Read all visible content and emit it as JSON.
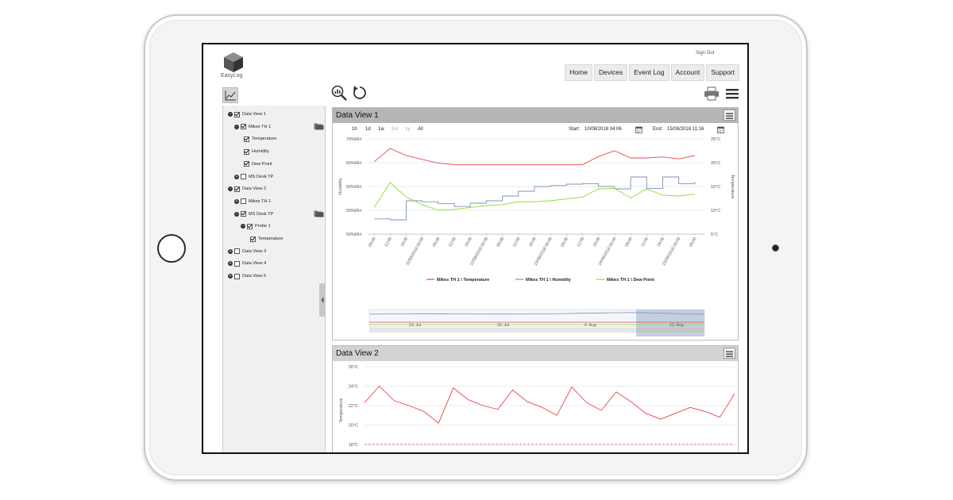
{
  "app": {
    "logo_text": "EasyLog",
    "sign_out": "Sign Out"
  },
  "nav": {
    "items": [
      {
        "label": "Home"
      },
      {
        "label": "Devices"
      },
      {
        "label": "Event Log"
      },
      {
        "label": "Account"
      },
      {
        "label": "Support"
      }
    ]
  },
  "tree": {
    "items": [
      {
        "label": "Data View 1",
        "checked": true,
        "toggle": "−"
      },
      {
        "label": "Mikes TH 1",
        "checked": true,
        "toggle": "−"
      },
      {
        "label": "Temperature",
        "checked": true
      },
      {
        "label": "Humidity",
        "checked": true
      },
      {
        "label": "Dew Point",
        "checked": true
      },
      {
        "label": "MS Desk TP",
        "checked": false,
        "toggle": "+"
      },
      {
        "label": "Data View 2",
        "checked": true,
        "toggle": "−"
      },
      {
        "label": "Mikes TH 1",
        "checked": false,
        "toggle": "+"
      },
      {
        "label": "MS Desk TP",
        "checked": true,
        "toggle": "−"
      },
      {
        "label": "Probe 1",
        "checked": true,
        "toggle": "−"
      },
      {
        "label": "Temperature",
        "checked": true
      },
      {
        "label": "Data View 3",
        "checked": false,
        "toggle": "+"
      },
      {
        "label": "Data View 4",
        "checked": false,
        "toggle": "+"
      },
      {
        "label": "Data View 5",
        "checked": false,
        "toggle": "+"
      }
    ]
  },
  "panel1": {
    "title": "Data View 1",
    "ranges": [
      "1h",
      "1d",
      "1w",
      "1m",
      "1y",
      "All"
    ],
    "start_label": "Start:",
    "start_value": "10/08/2018 04:06",
    "end_label": "End:",
    "end_value": "15/08/2018 11:16"
  },
  "panel2": {
    "title": "Data View 2"
  },
  "colors": {
    "temperature": "#e8474b",
    "humidity": "#7a93b8",
    "dewpoint": "#8edb2e",
    "navigator_shade": "#b9c8dd"
  },
  "chart_data": [
    {
      "type": "line",
      "title": "",
      "ylabel": "Humidity",
      "ylabel_right": "Temperature",
      "y_ticks": [
        "70%RH",
        "65%RH",
        "60%RH",
        "55%RH",
        "50%RH"
      ],
      "y_ticks_right": [
        "25°C",
        "20°C",
        "15°C",
        "10°C",
        "5°C"
      ],
      "ylim": [
        50,
        70
      ],
      "ylim_right": [
        5,
        25
      ],
      "x": [
        "06:00",
        "12:00",
        "18:00",
        "11/08/2018 00:00",
        "06:00",
        "12:00",
        "18:00",
        "12/08/2018 00:00",
        "06:00",
        "12:00",
        "18:00",
        "13/08/2018 00:00",
        "06:00",
        "12:00",
        "18:00",
        "14/08/2018 00:00",
        "06:00",
        "12:00",
        "18:00",
        "15/08/2018 00:00",
        "06:00"
      ],
      "legend_position": "bottom",
      "grid": true,
      "series": [
        {
          "name": "Mikes TH 1 \\ Temperature",
          "axis": "right",
          "values": [
            20.2,
            23.0,
            21.5,
            20.7,
            19.9,
            19.6,
            19.6,
            19.6,
            19.6,
            19.6,
            19.6,
            19.6,
            19.6,
            19.6,
            21.3,
            22.5,
            21.0,
            21.0,
            21.2,
            20.8,
            21.5
          ]
        },
        {
          "name": "Mikes TH 1 \\ Humidity",
          "axis": "left",
          "values": [
            53.2,
            53.0,
            57.0,
            56.8,
            56.4,
            55.8,
            56.5,
            57.0,
            58.0,
            59.0,
            60.0,
            60.2,
            60.5,
            60.6,
            60.0,
            59.5,
            62.0,
            59.6,
            62.0,
            60.6,
            61.0
          ]
        },
        {
          "name": "Mikes TH 1 \\ Dew Point",
          "axis": "right",
          "values": [
            10.6,
            15.8,
            12.8,
            11.2,
            10.0,
            10.2,
            10.6,
            11.0,
            11.2,
            11.8,
            11.8,
            12.0,
            12.4,
            12.8,
            14.5,
            14.6,
            12.6,
            14.5,
            13.2,
            13.0,
            13.4
          ]
        }
      ],
      "navigator": {
        "labels": [
          "23. Jul",
          "30. Jul",
          "6. Aug",
          "13. Aug"
        ]
      }
    },
    {
      "type": "line",
      "title": "",
      "ylabel": "Temperature",
      "y_ticks": [
        "26°C",
        "24°C",
        "22°C",
        "20°C",
        "18°C"
      ],
      "ylim": [
        18,
        26
      ],
      "grid": true,
      "series": [
        {
          "name": "Temperature",
          "values": [
            22.3,
            24.0,
            22.5,
            22.0,
            21.4,
            20.2,
            23.8,
            22.6,
            22.0,
            21.6,
            23.6,
            22.4,
            21.8,
            21.0,
            23.9,
            22.3,
            21.5,
            23.4,
            22.4,
            21.2,
            20.6,
            21.2,
            21.8,
            21.4,
            20.8,
            23.2
          ]
        }
      ]
    }
  ]
}
